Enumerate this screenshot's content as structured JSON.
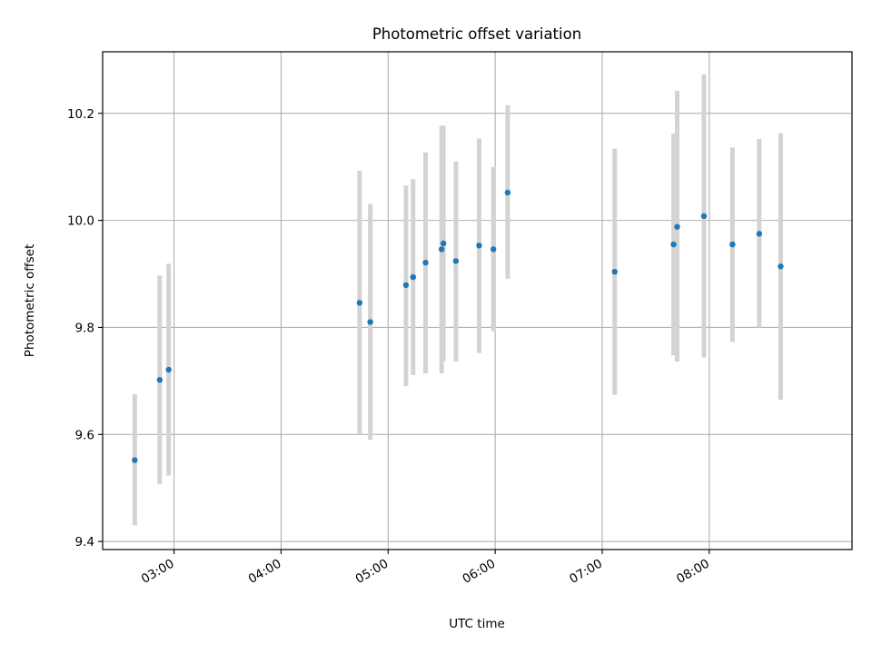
{
  "chart_data": {
    "type": "scatter",
    "title": "Photometric offset variation",
    "xlabel": "UTC time",
    "ylabel": "Photometric offset",
    "x_axis_type": "time",
    "xlim": [
      "02:20",
      "09:20"
    ],
    "ylim": [
      9.385,
      10.315
    ],
    "x_ticks": [
      "03:00",
      "04:00",
      "05:00",
      "06:00",
      "07:00",
      "08:00"
    ],
    "y_ticks": [
      9.4,
      9.6,
      9.8,
      10.0,
      10.2
    ],
    "y_tick_labels": [
      "9.4",
      "9.6",
      "9.8",
      "10.0",
      "10.2"
    ],
    "grid": true,
    "marker_color": "#1f77b4",
    "errorbar_color": "#d3d3d3",
    "points": [
      {
        "time": "02:38",
        "value": 9.552,
        "err_low": 9.43,
        "err_high": 9.675
      },
      {
        "time": "02:52",
        "value": 9.702,
        "err_low": 9.507,
        "err_high": 9.897
      },
      {
        "time": "02:57",
        "value": 9.721,
        "err_low": 9.523,
        "err_high": 9.919
      },
      {
        "time": "04:44",
        "value": 9.846,
        "err_low": 9.6,
        "err_high": 10.093
      },
      {
        "time": "04:50",
        "value": 9.81,
        "err_low": 9.59,
        "err_high": 10.031
      },
      {
        "time": "05:10",
        "value": 9.879,
        "err_low": 9.69,
        "err_high": 10.065
      },
      {
        "time": "05:14",
        "value": 9.894,
        "err_low": 9.711,
        "err_high": 10.077
      },
      {
        "time": "05:21",
        "value": 9.921,
        "err_low": 9.714,
        "err_high": 10.127
      },
      {
        "time": "05:30",
        "value": 9.946,
        "err_low": 9.714,
        "err_high": 10.177
      },
      {
        "time": "05:31",
        "value": 9.957,
        "err_low": 9.737,
        "err_high": 10.177
      },
      {
        "time": "05:38",
        "value": 9.924,
        "err_low": 9.736,
        "err_high": 10.11
      },
      {
        "time": "05:51",
        "value": 9.953,
        "err_low": 9.752,
        "err_high": 10.153
      },
      {
        "time": "05:59",
        "value": 9.946,
        "err_low": 9.793,
        "err_high": 10.1
      },
      {
        "time": "06:07",
        "value": 10.052,
        "err_low": 9.891,
        "err_high": 10.215
      },
      {
        "time": "07:07",
        "value": 9.904,
        "err_low": 9.674,
        "err_high": 10.134
      },
      {
        "time": "07:40",
        "value": 9.955,
        "err_low": 9.748,
        "err_high": 10.162
      },
      {
        "time": "07:42",
        "value": 9.988,
        "err_low": 9.736,
        "err_high": 10.242
      },
      {
        "time": "07:57",
        "value": 10.008,
        "err_low": 9.744,
        "err_high": 10.273
      },
      {
        "time": "08:13",
        "value": 9.955,
        "err_low": 9.773,
        "err_high": 10.136
      },
      {
        "time": "08:28",
        "value": 9.975,
        "err_low": 9.8,
        "err_high": 10.152
      },
      {
        "time": "08:40",
        "value": 9.914,
        "err_low": 9.665,
        "err_high": 10.163
      }
    ]
  }
}
